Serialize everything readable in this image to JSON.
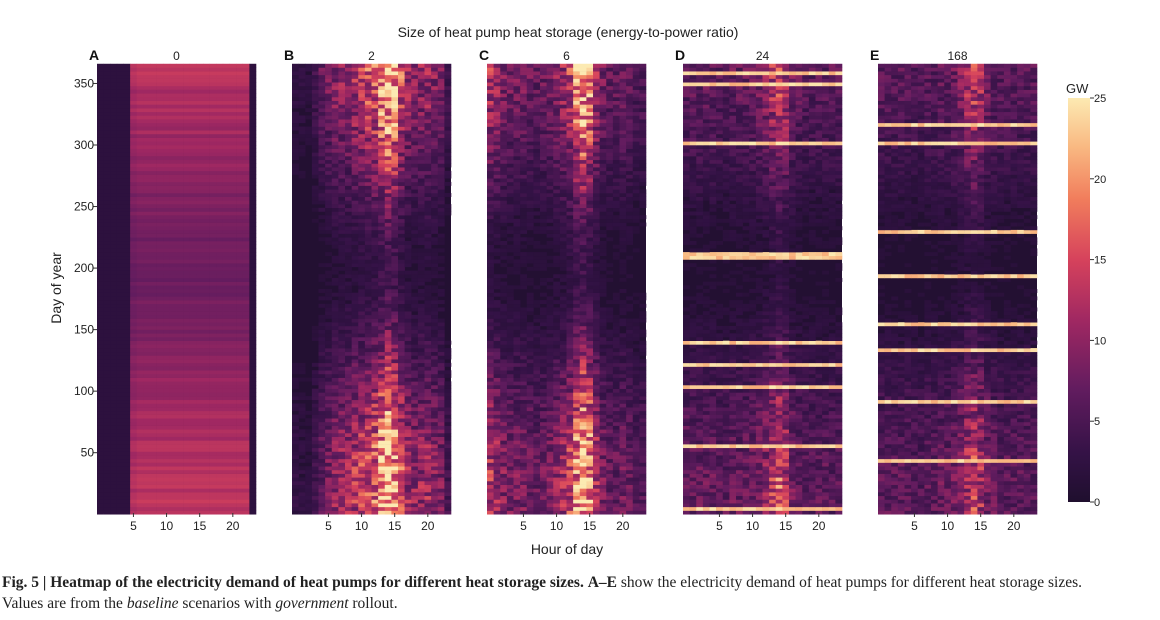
{
  "chart_data": {
    "type": "heatmap",
    "title": "Size of heat pump heat storage (energy-to-power ratio)",
    "xlabel": "Hour of day",
    "ylabel": "Day of year",
    "x_ticks": [
      5,
      10,
      15,
      20
    ],
    "y_ticks": [
      50,
      100,
      150,
      200,
      250,
      300,
      350
    ],
    "x_range": [
      0,
      23
    ],
    "y_range": [
      1,
      365
    ],
    "colorbar": {
      "label": "GW",
      "ticks": [
        0,
        5,
        10,
        15,
        20,
        25
      ],
      "range": [
        0,
        25
      ]
    },
    "colors": {
      "low": "#1f0f2e",
      "mid": "#c2325e",
      "high": "#fce8b0"
    },
    "panels": [
      {
        "letter": "A",
        "storage_label": "0",
        "hourly_profile": [
          0.8,
          0.8,
          0.8,
          0.8,
          0.8,
          10.5,
          11,
          11,
          11,
          11,
          11,
          11,
          11,
          11,
          11,
          11,
          11,
          11,
          11,
          11,
          11,
          11,
          11,
          0.8
        ],
        "peak_hours": [
          5,
          22
        ]
      },
      {
        "letter": "B",
        "storage_label": "2",
        "hourly_profile": [
          2,
          1.8,
          1.5,
          3,
          5,
          6,
          7,
          7.5,
          8,
          9,
          10,
          11,
          12,
          15,
          18,
          16,
          11,
          8,
          7,
          7.5,
          8,
          7,
          6,
          3
        ],
        "peak_hours": [
          13,
          15
        ]
      },
      {
        "letter": "C",
        "storage_label": "6",
        "hourly_profile": [
          9,
          8,
          6.5,
          6,
          6,
          6,
          5.5,
          5,
          5.5,
          6,
          7,
          8,
          10,
          14,
          17,
          14,
          9,
          6,
          5,
          5,
          5.5,
          5,
          4,
          4
        ],
        "peak_hours": [
          13,
          15
        ]
      },
      {
        "letter": "D",
        "storage_label": "24",
        "hourly_profile": [
          5,
          5,
          5,
          5,
          5,
          4.5,
          4.5,
          5,
          5,
          5,
          5.5,
          6,
          7,
          9,
          11,
          9,
          6,
          5,
          4.5,
          4.5,
          4.5,
          4.5,
          4.5,
          4.5
        ],
        "peak_hours": [
          13,
          15
        ]
      },
      {
        "letter": "E",
        "storage_label": "168",
        "hourly_profile": [
          4.5,
          4.5,
          4.5,
          4.5,
          4.5,
          4,
          4,
          4.5,
          4.5,
          5,
          5,
          5.5,
          6.5,
          8.5,
          10,
          8.5,
          6,
          5,
          4.5,
          4.5,
          4.5,
          4.5,
          4.5,
          4.5
        ],
        "peak_hours": [
          13,
          15
        ]
      }
    ],
    "seasonal_note": "winter days (start and end of year) high, summer days low"
  },
  "caption": {
    "fig_label": "Fig. 5 | Heatmap of the electricity demand of heat pumps for different heat storage sizes.",
    "bold_tail": "A–E",
    "text_1": " show the electricity demand of heat pumps for different heat storage sizes.",
    "text_2": "Values are from the ",
    "italic_1": "baseline",
    "text_3": " scenarios with ",
    "italic_2": "government",
    "text_4": " rollout."
  }
}
